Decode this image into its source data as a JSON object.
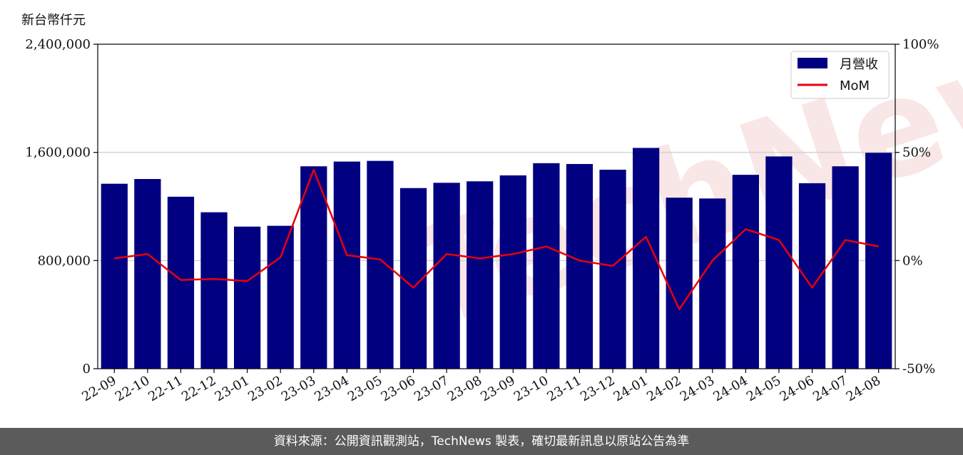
{
  "unit_label": "新台幣仟元",
  "footer_text": "資料來源：公開資訊觀測站，TechNews 製表，確切最新訊息以原站公告為準",
  "watermark_text": "TechNews",
  "colors": {
    "bar": "#000080",
    "line": "#e8000b",
    "grid": "#d3d3d3",
    "footer_bg": "#5b5b5b"
  },
  "chart_data": {
    "type": "bar",
    "categories": [
      "22-09",
      "22-10",
      "22-11",
      "22-12",
      "23-01",
      "23-02",
      "23-03",
      "23-04",
      "23-05",
      "23-06",
      "23-07",
      "23-08",
      "23-09",
      "23-10",
      "23-11",
      "23-12",
      "24-01",
      "24-02",
      "24-03",
      "24-04",
      "24-05",
      "24-06",
      "24-07",
      "24-08"
    ],
    "series": [
      {
        "name": "月營收",
        "kind": "bar",
        "axis": "left",
        "values": [
          1368000,
          1403000,
          1272000,
          1157000,
          1051000,
          1057000,
          1497000,
          1532000,
          1537000,
          1336000,
          1375000,
          1386000,
          1430000,
          1520000,
          1514000,
          1472000,
          1633000,
          1265000,
          1259000,
          1434000,
          1570000,
          1372000,
          1497000,
          1597000
        ]
      },
      {
        "name": "MoM",
        "kind": "line",
        "axis": "right",
        "values": [
          1.0,
          3.0,
          -9.0,
          -8.5,
          -9.5,
          1.5,
          42.0,
          2.5,
          0.5,
          -12.5,
          3.0,
          1.0,
          3.0,
          6.5,
          0.0,
          -2.5,
          11.0,
          -22.5,
          0.0,
          14.5,
          9.5,
          -12.5,
          9.5,
          6.5
        ]
      }
    ],
    "y_left": {
      "lim": [
        0,
        2400000
      ],
      "ticks": [
        0,
        800000,
        1600000,
        2400000
      ],
      "tick_labels": [
        "0",
        "800,000",
        "1,600,000",
        "2,400,000"
      ]
    },
    "y_right": {
      "lim": [
        -50,
        100
      ],
      "ticks": [
        -50,
        0,
        50,
        100
      ],
      "tick_labels": [
        "-50%",
        "0%",
        "50%",
        "100%"
      ]
    },
    "grid": "horizontal",
    "legend_position": "top-right"
  }
}
